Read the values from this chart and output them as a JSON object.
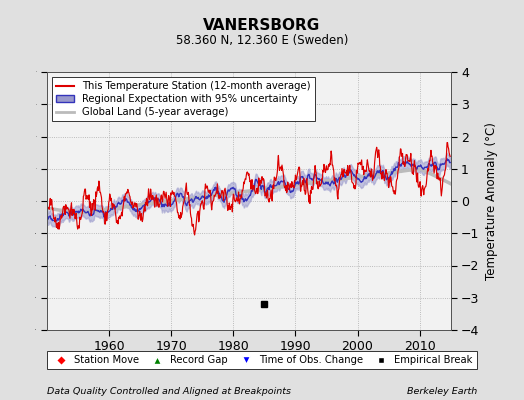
{
  "title": "VANERSBORG",
  "subtitle": "58.360 N, 12.360 E (Sweden)",
  "ylabel": "Temperature Anomaly (°C)",
  "footer_left": "Data Quality Controlled and Aligned at Breakpoints",
  "footer_right": "Berkeley Earth",
  "xlim": [
    1950,
    2015
  ],
  "ylim": [
    -4,
    4
  ],
  "yticks": [
    -4,
    -3,
    -2,
    -1,
    0,
    1,
    2,
    3,
    4
  ],
  "xticks": [
    1960,
    1970,
    1980,
    1990,
    2000,
    2010
  ],
  "empirical_break_x": 1985.0,
  "empirical_break_y": -3.2,
  "bg_color": "#e0e0e0",
  "plot_bg_color": "#f2f2f2",
  "station_color": "#dd0000",
  "regional_color": "#3333bb",
  "regional_fill_color": "#9999cc",
  "global_color": "#bbbbbb",
  "legend_station": "This Temperature Station (12-month average)",
  "legend_regional": "Regional Expectation with 95% uncertainty",
  "legend_global": "Global Land (5-year average)",
  "bottom_legend": [
    {
      "label": "Station Move",
      "marker": "D",
      "color": "red"
    },
    {
      "label": "Record Gap",
      "marker": "^",
      "color": "green"
    },
    {
      "label": "Time of Obs. Change",
      "marker": "v",
      "color": "blue"
    },
    {
      "label": "Empirical Break",
      "marker": "s",
      "color": "black"
    }
  ]
}
